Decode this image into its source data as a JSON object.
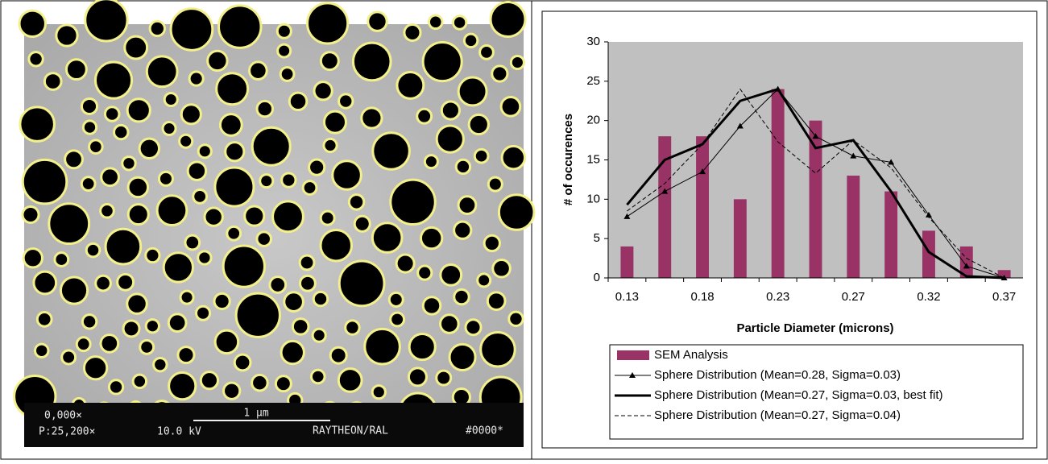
{
  "sem_image": {
    "labels": [
      "0,000×",
      "P:25,200×",
      "10.0 kV",
      "1 µm",
      "RAYTHEON/RAL",
      "#0000*"
    ]
  },
  "chart_data": {
    "type": "bar",
    "x_label": "Particle Diameter (microns)",
    "y_label": "# of occurences",
    "categories": [
      "0.13",
      null,
      "0.18",
      null,
      "0.23",
      null,
      "0.27",
      null,
      "0.32",
      null,
      "0.37"
    ],
    "ylim": [
      0,
      30
    ],
    "yticks": [
      0,
      5,
      10,
      15,
      20,
      25,
      30
    ],
    "grid": false,
    "background": "#c0c0c0",
    "series": [
      {
        "name": "SEM Analysis",
        "type": "bar",
        "color": "#993366",
        "values": [
          4,
          18,
          18,
          10,
          24,
          20,
          13,
          11,
          6,
          4,
          1
        ]
      },
      {
        "name": "Sphere Distribution (Mean=0.28, Sigma=0.03)",
        "type": "line",
        "color": "#000000",
        "line_width": 1,
        "marker": "triangle",
        "dash": false,
        "values": [
          7.8,
          11,
          13.5,
          19.3,
          24,
          18,
          15.5,
          14.7,
          8,
          1.5,
          0
        ]
      },
      {
        "name": "Sphere Distribution (Mean=0.27, Sigma=0.03, best fit)",
        "type": "line",
        "color": "#000000",
        "line_width": 3,
        "marker": null,
        "dash": false,
        "values": [
          9.3,
          15,
          17,
          22.5,
          24,
          16.5,
          17.5,
          11,
          3.3,
          0.2,
          0
        ]
      },
      {
        "name": "Sphere Distribution (Mean=0.27, Sigma=0.04)",
        "type": "line",
        "color": "#000000",
        "line_width": 1,
        "marker": null,
        "dash": true,
        "values": [
          8.5,
          12,
          17,
          24,
          17.3,
          13.3,
          17.5,
          14,
          7.7,
          2.5,
          0
        ]
      }
    ]
  }
}
